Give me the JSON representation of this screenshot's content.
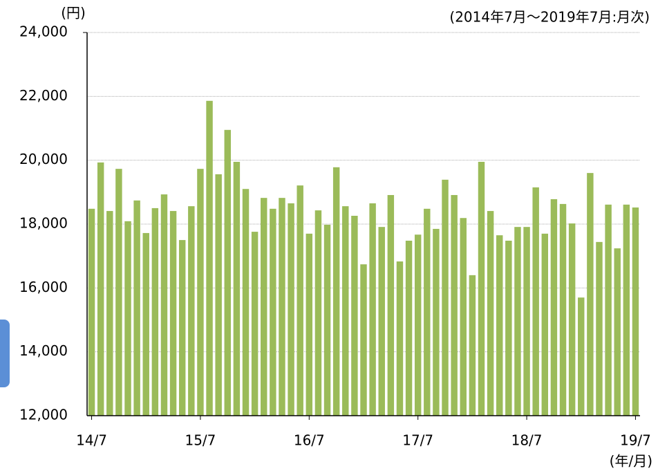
{
  "chart_data": {
    "type": "bar",
    "y_unit": "(円)",
    "subtitle": "(2014年7月～2019年7月:月次)",
    "x_unit": "(年/月)",
    "color": "#9bbb59",
    "grid": true,
    "categories": [
      "14/7",
      null,
      null,
      null,
      null,
      null,
      null,
      null,
      null,
      null,
      null,
      null,
      "15/7",
      null,
      null,
      null,
      null,
      null,
      null,
      null,
      null,
      null,
      null,
      null,
      "16/7",
      null,
      null,
      null,
      null,
      null,
      null,
      null,
      null,
      null,
      null,
      null,
      "17/7",
      null,
      null,
      null,
      null,
      null,
      null,
      null,
      null,
      null,
      null,
      null,
      "18/7",
      null,
      null,
      null,
      null,
      null,
      null,
      null,
      null,
      null,
      null,
      null,
      "19/7"
    ],
    "values": [
      18480,
      19930,
      18410,
      19730,
      18090,
      18740,
      17720,
      18500,
      18930,
      18410,
      17500,
      18560,
      19730,
      21860,
      19560,
      20950,
      19950,
      19100,
      17760,
      18820,
      18480,
      18820,
      18650,
      19210,
      17700,
      18430,
      17980,
      19780,
      18560,
      18260,
      16740,
      18650,
      17910,
      18910,
      16830,
      17480,
      17670,
      18480,
      17850,
      19390,
      18910,
      18190,
      16400,
      19950,
      18410,
      17650,
      17480,
      17910,
      17910,
      19150,
      17700,
      18780,
      18630,
      18020,
      15700,
      19600,
      17440,
      18610,
      17240,
      18610,
      18520
    ],
    "ylim": [
      12000,
      24000
    ],
    "yticks": [
      {
        "value": 12000,
        "label": "12,000"
      },
      {
        "value": 14000,
        "label": "14,000"
      },
      {
        "value": 16000,
        "label": "16,000"
      },
      {
        "value": 18000,
        "label": "18,000"
      },
      {
        "value": 20000,
        "label": "20,000"
      },
      {
        "value": 22000,
        "label": "22,000"
      },
      {
        "value": 24000,
        "label": "24,000"
      }
    ]
  }
}
